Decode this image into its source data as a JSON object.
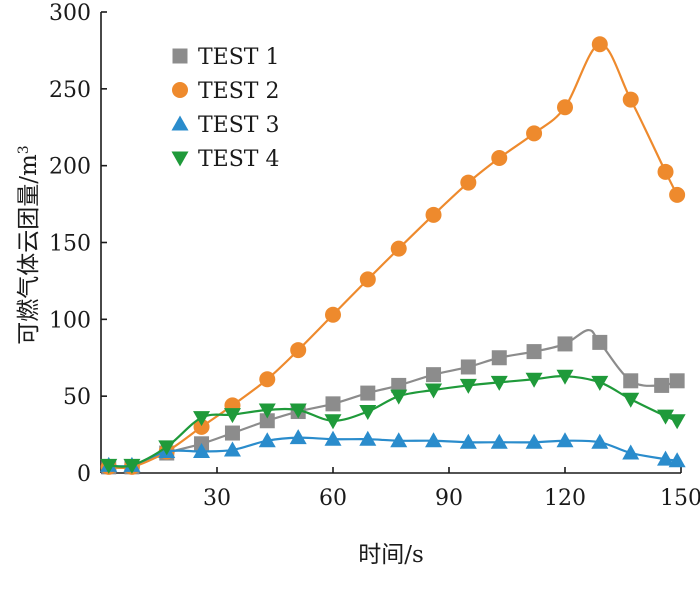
{
  "chart_data": {
    "type": "line",
    "xlabel": "时间/s",
    "ylabel": "可燃气体云团量/m",
    "ylabel_superscript": "3",
    "xlim": [
      0,
      150
    ],
    "ylim": [
      0,
      300
    ],
    "xticks": [
      "30",
      "60",
      "90",
      "120",
      "150"
    ],
    "yticks": [
      "0",
      "50",
      "100",
      "150",
      "200",
      "250",
      "300"
    ],
    "legend_position": "top-left",
    "grid": false,
    "series": [
      {
        "name": "TEST 1",
        "color": "#8c8c8c",
        "marker": "square",
        "x": [
          2,
          8,
          17,
          26,
          34,
          43,
          51,
          60,
          69,
          77,
          86,
          95,
          103,
          112,
          120,
          126,
          129,
          137,
          145,
          149
        ],
        "y": [
          4,
          4,
          13,
          19,
          26,
          34,
          40,
          45,
          52,
          57,
          64,
          69,
          75,
          79,
          84,
          93,
          85,
          60,
          57,
          60
        ],
        "marker_x": [
          2,
          8,
          17,
          26,
          34,
          43,
          51,
          60,
          69,
          77,
          86,
          95,
          103,
          112,
          120,
          129,
          137,
          145,
          149
        ],
        "marker_y": [
          4,
          4,
          13,
          19,
          26,
          34,
          40,
          45,
          52,
          57,
          64,
          69,
          75,
          79,
          84,
          85,
          60,
          57,
          60
        ]
      },
      {
        "name": "TEST 2",
        "color": "#ee8a2d",
        "marker": "circle",
        "x": [
          2,
          8,
          17,
          26,
          34,
          43,
          51,
          60,
          69,
          77,
          86,
          95,
          103,
          112,
          120,
          129,
          137,
          146,
          149
        ],
        "y": [
          4,
          4,
          14,
          30,
          44,
          61,
          80,
          103,
          126,
          146,
          168,
          189,
          205,
          221,
          238,
          279,
          243,
          196,
          181
        ]
      },
      {
        "name": "TEST 3",
        "color": "#2a8ccc",
        "marker": "triangle-up",
        "x": [
          2,
          8,
          17,
          26,
          34,
          43,
          51,
          60,
          69,
          77,
          86,
          95,
          103,
          112,
          120,
          129,
          137,
          146,
          149
        ],
        "y": [
          5,
          5,
          14,
          14,
          15,
          21,
          23,
          22,
          22,
          21,
          21,
          20,
          20,
          20,
          21,
          20,
          13,
          9,
          8
        ]
      },
      {
        "name": "TEST 4",
        "color": "#1f9a3a",
        "marker": "triangle-down",
        "x": [
          2,
          8,
          17,
          26,
          34,
          43,
          51,
          60,
          69,
          77,
          86,
          95,
          103,
          112,
          120,
          129,
          137,
          146,
          149
        ],
        "y": [
          5,
          5,
          17,
          36,
          38,
          41,
          41,
          34,
          40,
          50,
          54,
          57,
          59,
          61,
          63,
          59,
          48,
          37,
          34
        ]
      }
    ]
  }
}
